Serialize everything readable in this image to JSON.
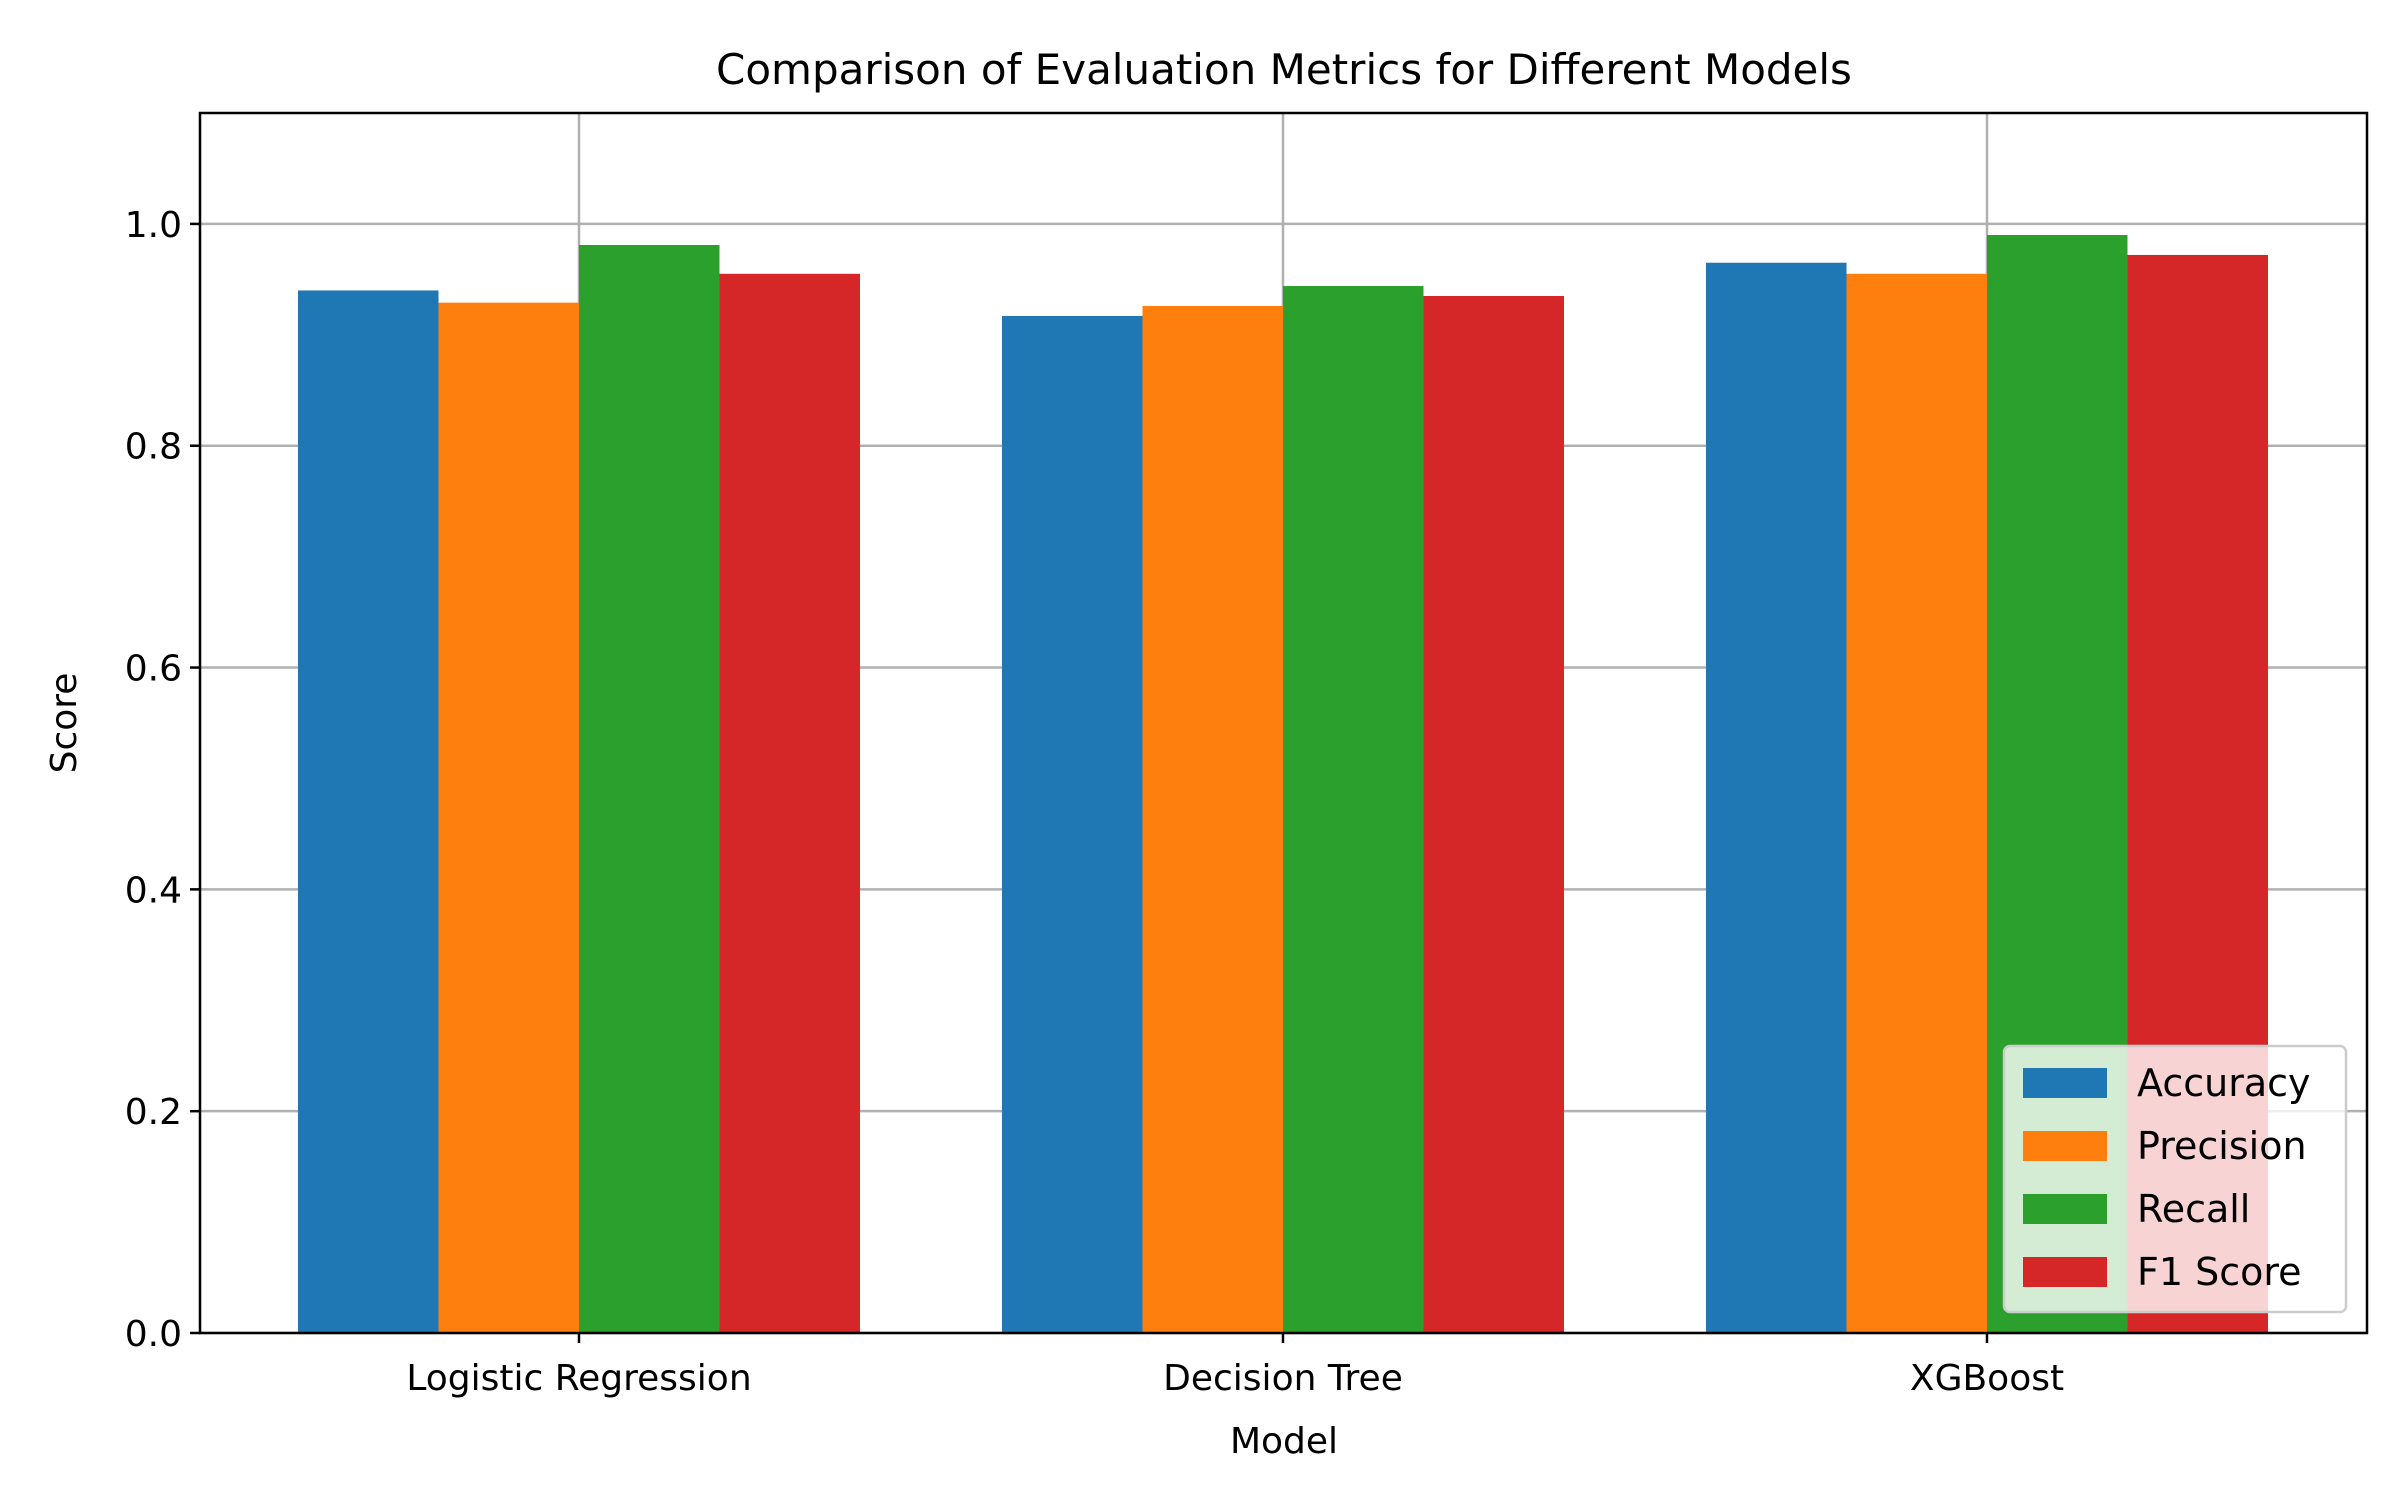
{
  "chart_data": {
    "type": "bar",
    "title": "Comparison of Evaluation Metrics for Different Models",
    "xlabel": "Model",
    "ylabel": "Score",
    "categories": [
      "Logistic Regression",
      "Decision Tree",
      "XGBoost"
    ],
    "series": [
      {
        "name": "Accuracy",
        "color": "#1f77b4",
        "values": [
          0.94,
          0.917,
          0.965
        ]
      },
      {
        "name": "Precision",
        "color": "#ff7f0e",
        "values": [
          0.929,
          0.926,
          0.955
        ]
      },
      {
        "name": "Recall",
        "color": "#2ca02c",
        "values": [
          0.981,
          0.944,
          0.99
        ]
      },
      {
        "name": "F1 Score",
        "color": "#d62728",
        "values": [
          0.955,
          0.935,
          0.972
        ]
      }
    ],
    "ylim": [
      0,
      1.1
    ],
    "yticks": [
      "0.0",
      "0.2",
      "0.4",
      "0.6",
      "0.8",
      "1.0"
    ],
    "grid": true,
    "legend_position": "lower right"
  }
}
